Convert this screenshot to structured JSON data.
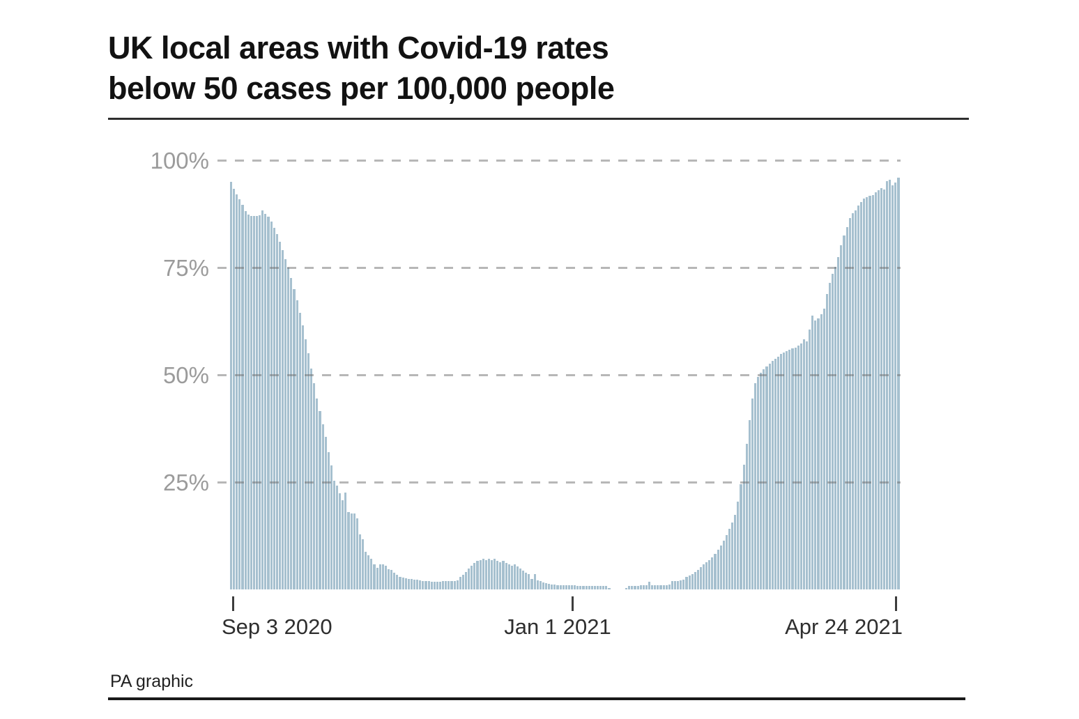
{
  "title": {
    "line1": "UK local areas with Covid-19 rates",
    "line2": "below 50 cases per 100,000 people"
  },
  "footer": {
    "credit": "PA graphic"
  },
  "chart_data": {
    "type": "bar",
    "title": "UK local areas with Covid-19 rates below 50 cases per 100,000 people",
    "xlabel": "",
    "ylabel": "",
    "unit": "%",
    "ylim": [
      0,
      100
    ],
    "grid": "horizontal dashed lines at 25/50/75/100",
    "legend": "none",
    "bar_color": "#a6c0cf",
    "y_ticks": [
      "100%",
      "75%",
      "50%",
      "25%"
    ],
    "y_gridlines": [
      100,
      75,
      50,
      25
    ],
    "x_ticks": [
      "Sep 3 2020",
      "Jan 1 2021",
      "Apr 24 2021"
    ],
    "x_tick_days": [
      0,
      120,
      233
    ],
    "n_bars": 234,
    "x_frequency": "daily",
    "values": [
      95,
      93.3,
      92.1,
      90.9,
      89.6,
      88.2,
      87.4,
      87,
      87,
      87.1,
      87.2,
      88.3,
      87.5,
      86.8,
      85.7,
      84.3,
      82.8,
      81,
      79,
      77,
      75,
      72.6,
      70,
      67.3,
      64.5,
      61.5,
      58.3,
      55,
      51.5,
      48,
      44.5,
      41.5,
      38.5,
      35.5,
      32,
      28.9,
      25.3,
      24.2,
      22.4,
      20.8,
      22.6,
      18,
      17.7,
      17.7,
      16.6,
      12.8,
      11.7,
      8.7,
      7.9,
      7.1,
      5.8,
      5,
      5.8,
      5.9,
      5.6,
      4.7,
      4.5,
      3.9,
      3.4,
      3,
      2.8,
      2.6,
      2.5,
      2.4,
      2.3,
      2.2,
      2.1,
      2,
      1.9,
      1.9,
      1.8,
      1.8,
      1.8,
      1.8,
      1.9,
      1.9,
      1.9,
      2,
      2,
      2.1,
      3,
      3.4,
      4,
      4.8,
      5.5,
      6.1,
      6.6,
      6.9,
      7.1,
      6.8,
      7.2,
      6.9,
      7.1,
      6.7,
      6.4,
      6.6,
      6.1,
      5.8,
      5.6,
      5.9,
      5.4,
      4.9,
      4.4,
      3.9,
      3.5,
      2.5,
      3.5,
      2.1,
      1.9,
      1.7,
      1.5,
      1.3,
      1.2,
      1.1,
      1,
      1,
      1,
      1,
      1,
      1,
      1,
      0.9,
      0.9,
      0.9,
      0.9,
      0.9,
      0.9,
      0.9,
      0.9,
      0.9,
      0.9,
      0.8,
      0.3,
      0,
      0,
      0,
      0,
      0,
      0.3,
      0.8,
      0.9,
      0.9,
      0.9,
      1,
      1,
      1,
      1.8,
      1,
      1,
      1,
      1,
      1,
      1,
      1.1,
      1.9,
      2,
      2,
      2.1,
      2.2,
      2.9,
      3.2,
      3.6,
      4.1,
      4.6,
      5.2,
      5.8,
      6.3,
      6.8,
      7.5,
      8.3,
      9.2,
      10.2,
      11.4,
      12.7,
      14.1,
      15.6,
      17.3,
      20.5,
      24.5,
      29,
      34,
      39.5,
      44.5,
      48,
      49.5,
      50.5,
      51.3,
      52,
      52.6,
      53.2,
      53.8,
      54.3,
      54.8,
      55.2,
      55.5,
      55.8,
      56.1,
      56.4,
      56.8,
      57.3,
      58.3,
      57.8,
      60.5,
      63.8,
      62.6,
      63.2,
      64.2,
      65.5,
      68.9,
      71.5,
      73.5,
      75.1,
      77.5,
      80.2,
      82.5,
      84.5,
      86.5,
      87.6,
      88.4,
      89.4,
      90.2,
      91,
      91.4,
      91.7,
      91.9,
      92.5,
      93,
      93.5,
      93.2,
      95.1,
      95.4,
      94.2,
      94.8,
      95.9
    ]
  }
}
